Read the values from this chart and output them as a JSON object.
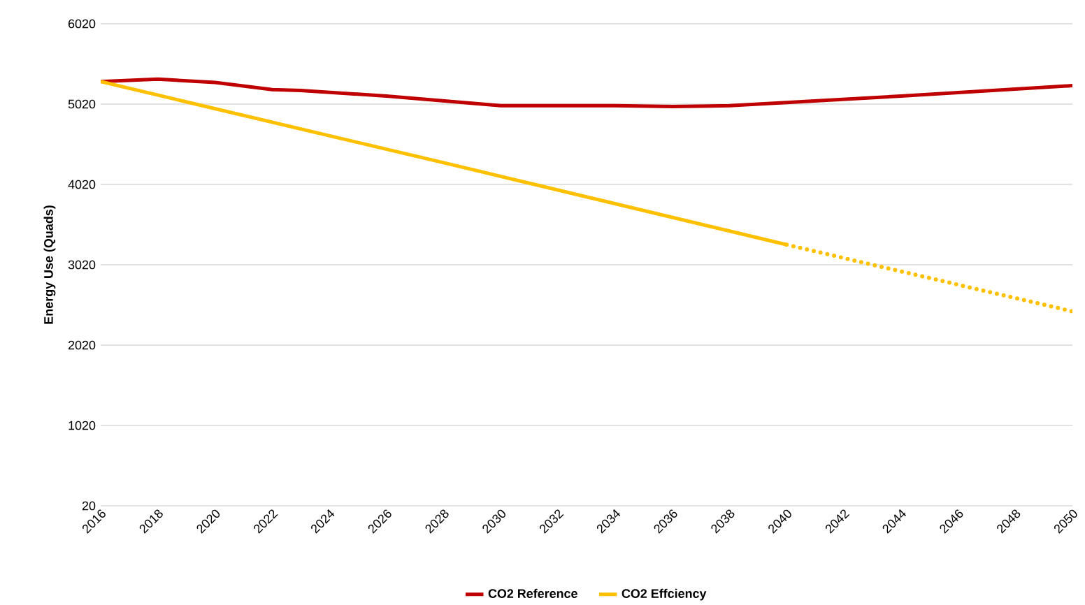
{
  "chart_data": {
    "type": "line",
    "ylabel": "Energy Use (Quads)",
    "xlim": [
      2016,
      2050
    ],
    "ylim": [
      20,
      6020
    ],
    "xticks": [
      2016,
      2018,
      2020,
      2022,
      2024,
      2026,
      2028,
      2030,
      2032,
      2034,
      2036,
      2038,
      2040,
      2042,
      2044,
      2046,
      2048,
      2050
    ],
    "yticks": [
      20,
      1020,
      2020,
      3020,
      4020,
      5020,
      6020
    ],
    "grid": "y",
    "legend": "bottom",
    "marker": "none",
    "series": [
      {
        "name": "CO2 Reference",
        "color": "#c00000",
        "line_style": "solid",
        "x": [
          2016,
          2018,
          2020,
          2022,
          2023,
          2026,
          2028,
          2030,
          2032,
          2034,
          2036,
          2038,
          2040,
          2044,
          2050
        ],
        "values": [
          5300,
          5330,
          5290,
          5200,
          5190,
          5120,
          5060,
          5000,
          5000,
          5000,
          4990,
          5000,
          5040,
          5120,
          5250
        ]
      },
      {
        "name": "CO2 Effciency",
        "color": "#ffc000",
        "line_style": "solid",
        "x": [
          2016,
          2028,
          2040
        ],
        "values": [
          5300,
          4290,
          3270
        ]
      },
      {
        "color": "#ffc000",
        "line_style": "dotted",
        "x": [
          2040,
          2050
        ],
        "values": [
          3270,
          2440
        ]
      }
    ]
  }
}
